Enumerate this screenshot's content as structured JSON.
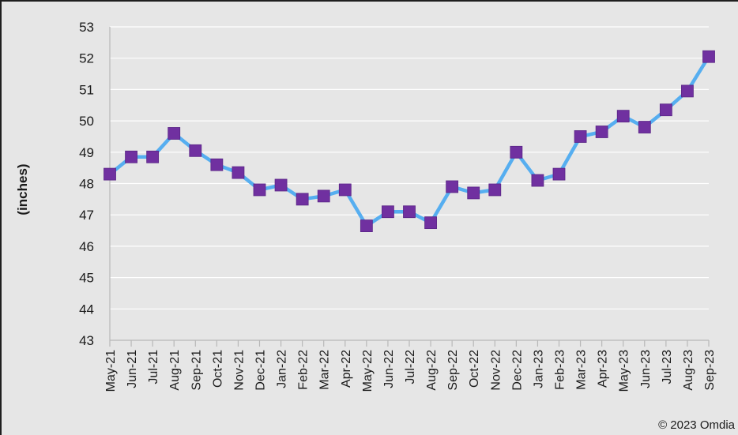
{
  "chart_data": {
    "type": "line",
    "ylabel": "(inches)",
    "ylim": [
      43,
      53
    ],
    "yticks": [
      43,
      44,
      45,
      46,
      47,
      48,
      49,
      50,
      51,
      52,
      53
    ],
    "grid": true,
    "categories": [
      "May-21",
      "Jun-21",
      "Jul-21",
      "Aug-21",
      "Sep-21",
      "Oct-21",
      "Nov-21",
      "Dec-21",
      "Jan-22",
      "Feb-22",
      "Mar-22",
      "Apr-22",
      "May-22",
      "Jun-22",
      "Jul-22",
      "Aug-22",
      "Sep-22",
      "Oct-22",
      "Nov-22",
      "Dec-22",
      "Jan-23",
      "Feb-23",
      "Mar-23",
      "Apr-23",
      "May-23",
      "Jun-23",
      "Jul-23",
      "Aug-23",
      "Sep-23"
    ],
    "series": [
      {
        "values": [
          48.3,
          48.85,
          48.85,
          49.6,
          49.05,
          48.6,
          48.35,
          47.8,
          47.95,
          47.5,
          47.6,
          47.8,
          46.65,
          47.1,
          47.1,
          46.75,
          47.9,
          47.7,
          47.8,
          49.0,
          48.1,
          48.3,
          49.5,
          49.65,
          50.15,
          49.8,
          50.35,
          50.95,
          52.05
        ],
        "line_color": "#56aef0",
        "marker_color": "#7030a0"
      }
    ]
  },
  "copyright": "© 2023 Omdia"
}
